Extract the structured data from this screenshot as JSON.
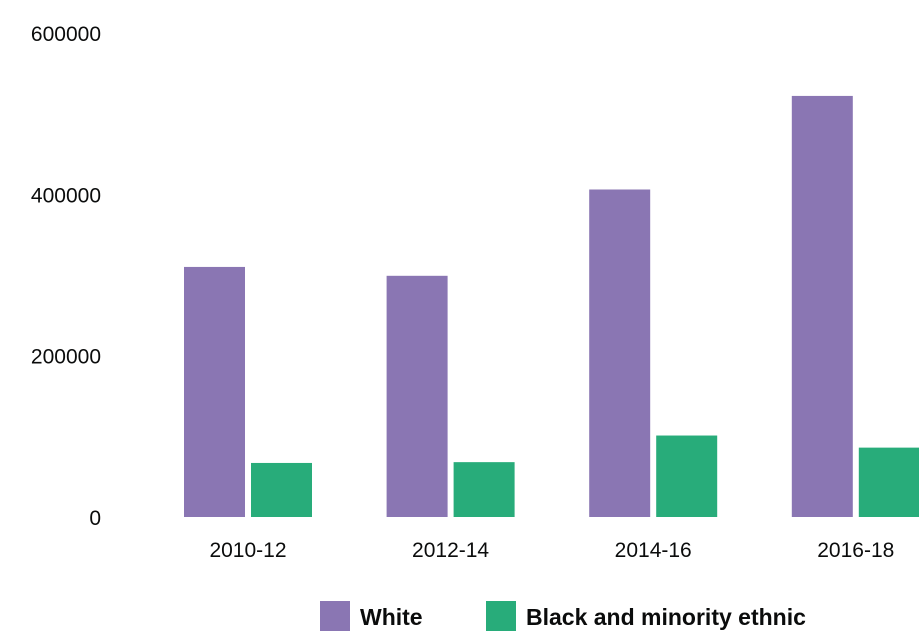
{
  "chart_data": {
    "type": "bar",
    "title": "",
    "xlabel": "",
    "ylabel": "",
    "categories": [
      "2010-12",
      "2012-14",
      "2014-16",
      "2016-18"
    ],
    "series": [
      {
        "name": "White",
        "color": "#8a76b3",
        "values": [
          310000,
          299000,
          406000,
          522000
        ]
      },
      {
        "name": "Black and minority ethnic",
        "color": "#28ac7a",
        "values": [
          67000,
          68000,
          101000,
          86000
        ]
      }
    ],
    "ylim": [
      0,
      600000
    ],
    "yticks": [
      "0",
      "200000",
      "400000",
      "600000"
    ],
    "grid": false,
    "legend_position": "bottom"
  }
}
